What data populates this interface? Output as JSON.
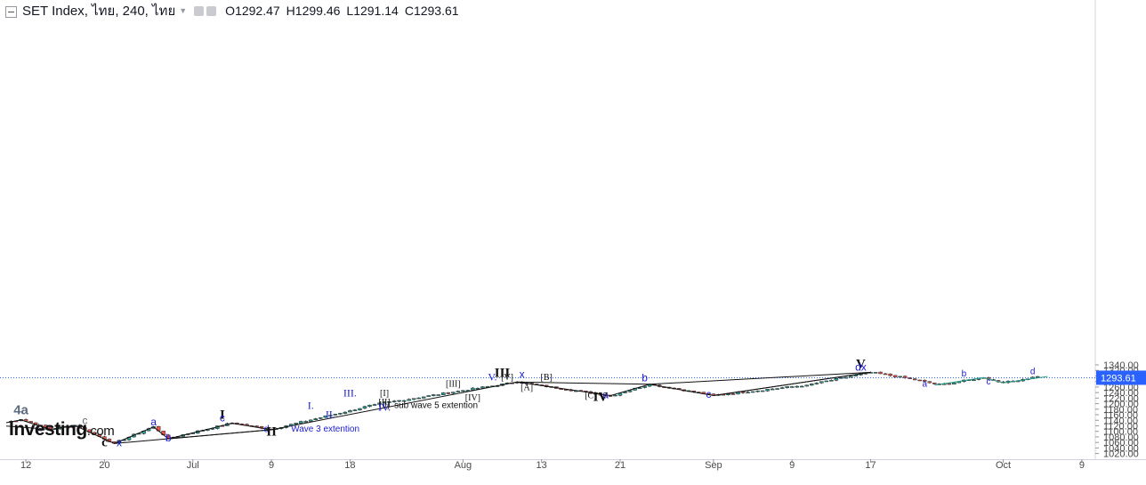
{
  "header": {
    "title": "SET Index, ไทย, 240, ไทย",
    "o_label": "O",
    "o_value": "1292.47",
    "h_label": "H",
    "h_value": "1299.46",
    "l_label": "L",
    "l_value": "1291.14",
    "c_label": "C",
    "c_value": "1293.61"
  },
  "logo": {
    "name": "Investing",
    "suffix": ".com"
  },
  "colors": {
    "up": "#26a69a",
    "down": "#ef5350",
    "wave_black": "#111111",
    "wave_blue": "#1a1ad6",
    "price_line": "#2962ff",
    "price_tag": "#2962ff",
    "green_wave": "#2e9e8a"
  },
  "chart_data": {
    "type": "candlestick",
    "y_axis": {
      "min": 1020,
      "max": 1340,
      "ticks": [
        "1020.00",
        "1040.00",
        "1060.00",
        "1080.00",
        "1100.00",
        "1120.00",
        "1140.00",
        "1160.00",
        "1180.00",
        "1200.00",
        "1220.00",
        "1240.00",
        "1260.00",
        "1280.00",
        "1300.00",
        "1320.00",
        "1340.00"
      ]
    },
    "x_axis": {
      "ticks": [
        {
          "label": "12",
          "i": 4
        },
        {
          "label": "20",
          "i": 20
        },
        {
          "label": "Jul",
          "i": 38
        },
        {
          "label": "9",
          "i": 54
        },
        {
          "label": "18",
          "i": 70
        },
        {
          "label": "Aug",
          "i": 93
        },
        {
          "label": "13",
          "i": 109
        },
        {
          "label": "21",
          "i": 125
        },
        {
          "label": "Sep",
          "i": 144
        },
        {
          "label": "9",
          "i": 160
        },
        {
          "label": "17",
          "i": 176
        },
        {
          "label": "Oct",
          "i": 203
        },
        {
          "label": "9",
          "i": 219
        }
      ]
    },
    "current_price": {
      "value": 1293.61,
      "label": "1293.61"
    },
    "pivots": [
      [
        0,
        1133
      ],
      [
        3,
        1143
      ],
      [
        9,
        1108
      ],
      [
        14,
        1122
      ],
      [
        22,
        1057
      ],
      [
        30,
        1117
      ],
      [
        33,
        1075
      ],
      [
        46,
        1130
      ],
      [
        54,
        1108
      ],
      [
        70,
        1175
      ],
      [
        75,
        1197
      ],
      [
        92,
        1245
      ],
      [
        104,
        1278
      ],
      [
        123,
        1228
      ],
      [
        131,
        1270
      ],
      [
        144,
        1230
      ],
      [
        163,
        1267
      ],
      [
        176,
        1313
      ],
      [
        184,
        1290
      ],
      [
        190,
        1268
      ],
      [
        199,
        1294
      ],
      [
        203,
        1275
      ],
      [
        210,
        1298
      ]
    ],
    "wave_lines": [
      {
        "color": "black",
        "points": [
          [
            0,
            1131
          ],
          [
            3,
            1141
          ],
          [
            9,
            1107
          ],
          [
            14,
            1121
          ],
          [
            22,
            1056
          ],
          [
            30,
            1116
          ],
          [
            33,
            1073
          ],
          [
            46,
            1129
          ],
          [
            54,
            1106
          ]
        ]
      },
      {
        "color": "black",
        "points": [
          [
            0,
            1119
          ],
          [
            9,
            1107
          ]
        ]
      },
      {
        "color": "black",
        "points": [
          [
            22,
            1056
          ],
          [
            54,
            1106
          ]
        ]
      },
      {
        "color": "black",
        "points": [
          [
            33,
            1073
          ],
          [
            54,
            1106
          ]
        ]
      },
      {
        "color": "black",
        "points": [
          [
            54,
            1106
          ],
          [
            104,
            1278
          ],
          [
            123,
            1229
          ],
          [
            131,
            1270
          ],
          [
            144,
            1229
          ],
          [
            176,
            1313
          ]
        ]
      },
      {
        "color": "black",
        "points": [
          [
            104,
            1278
          ],
          [
            131,
            1270
          ]
        ]
      },
      {
        "color": "black",
        "points": [
          [
            131,
            1270
          ],
          [
            176,
            1313
          ]
        ]
      },
      {
        "color": "black",
        "points": [
          [
            144,
            1229
          ],
          [
            176,
            1313
          ]
        ]
      },
      {
        "color": "green",
        "points": [
          [
            189,
            1267
          ],
          [
            199,
            1294
          ],
          [
            203,
            1275
          ],
          [
            212,
            1298
          ]
        ]
      }
    ],
    "labels": [
      {
        "text": "4a",
        "i": 3,
        "y": 1161,
        "color": "slate",
        "size": 15,
        "bold": true
      },
      {
        "text": "b",
        "i": 7,
        "y": 1101,
        "color": "slate",
        "size": 12
      },
      {
        "text": "c",
        "i": 16,
        "y": 1126,
        "color": "slate",
        "size": 12
      },
      {
        "text": "c",
        "i": 20,
        "y": 1046,
        "color": "black",
        "size": 15,
        "bold": true,
        "serif": true
      },
      {
        "text": "x",
        "i": 23,
        "y": 1046,
        "color": "blue",
        "size": 12
      },
      {
        "text": "a",
        "i": 30,
        "y": 1121,
        "color": "blue",
        "size": 12
      },
      {
        "text": "b",
        "i": 33,
        "y": 1063,
        "color": "blue",
        "size": 12
      },
      {
        "text": "I",
        "i": 44,
        "y": 1145,
        "color": "black",
        "size": 15,
        "bold": true,
        "serif": true
      },
      {
        "text": "c",
        "i": 44,
        "y": 1136,
        "color": "blue",
        "size": 12
      },
      {
        "text": "d",
        "i": 53,
        "y": 1098,
        "color": "blue",
        "size": 11
      },
      {
        "text": "II",
        "i": 54,
        "y": 1085,
        "color": "black",
        "size": 15,
        "bold": true,
        "serif": true
      },
      {
        "text": "Wave 3 extention",
        "i": 58,
        "y": 1099,
        "color": "blue",
        "size": 10,
        "anchor": "start"
      },
      {
        "text": "I.",
        "i": 62,
        "y": 1181,
        "color": "blue",
        "size": 12,
        "serif": true
      },
      {
        "text": "II.",
        "i": 66,
        "y": 1149,
        "color": "blue",
        "size": 12,
        "serif": true
      },
      {
        "text": "III.",
        "i": 70,
        "y": 1226,
        "color": "blue",
        "size": 12,
        "serif": true
      },
      {
        "text": "[I]",
        "i": 77,
        "y": 1227,
        "color": "black",
        "size": 10,
        "serif": true
      },
      {
        "text": "[II]",
        "i": 77,
        "y": 1196,
        "color": "black",
        "size": 10,
        "serif": true
      },
      {
        "text": "[0]",
        "i": 77,
        "y": 1186,
        "color": "black",
        "size": 10,
        "serif": true
      },
      {
        "text": "sub wave 5 extention",
        "i": 79,
        "y": 1184,
        "color": "black",
        "size": 10,
        "anchor": "start"
      },
      {
        "text": "IV.",
        "i": 77,
        "y": 1175,
        "color": "blue",
        "size": 12,
        "serif": true
      },
      {
        "text": "[III]",
        "i": 91,
        "y": 1261,
        "color": "black",
        "size": 10,
        "serif": true
      },
      {
        "text": "[IV]",
        "i": 95,
        "y": 1212,
        "color": "black",
        "size": 10,
        "serif": true
      },
      {
        "text": "V.",
        "i": 99,
        "y": 1284,
        "color": "blue",
        "size": 12,
        "serif": true
      },
      {
        "text": "[V]",
        "i": 102,
        "y": 1285,
        "color": "black",
        "size": 10,
        "serif": true
      },
      {
        "text": "III",
        "i": 101,
        "y": 1296,
        "color": "black",
        "size": 15,
        "bold": true,
        "serif": true
      },
      {
        "text": "x",
        "i": 105,
        "y": 1294,
        "color": "blue",
        "size": 12
      },
      {
        "text": "[A]",
        "i": 106,
        "y": 1249,
        "color": "black",
        "size": 10,
        "serif": true
      },
      {
        "text": "[B]",
        "i": 110,
        "y": 1286,
        "color": "black",
        "size": 10,
        "serif": true
      },
      {
        "text": "[C]",
        "i": 119,
        "y": 1220,
        "color": "black",
        "size": 10,
        "serif": true
      },
      {
        "text": "a",
        "i": 122,
        "y": 1220,
        "color": "blue",
        "size": 12
      },
      {
        "text": "IV",
        "i": 121,
        "y": 1210,
        "color": "black",
        "size": 15,
        "bold": true,
        "serif": true
      },
      {
        "text": "b",
        "i": 130,
        "y": 1281,
        "color": "blue",
        "size": 12
      },
      {
        "text": "c",
        "i": 143,
        "y": 1221,
        "color": "blue",
        "size": 12
      },
      {
        "text": "V",
        "i": 174,
        "y": 1328,
        "color": "black",
        "size": 15,
        "bold": true,
        "serif": true
      },
      {
        "text": "dx",
        "i": 174,
        "y": 1319,
        "color": "blue",
        "size": 12
      },
      {
        "text": "a",
        "i": 187,
        "y": 1261,
        "color": "blue",
        "size": 10
      },
      {
        "text": "b",
        "i": 195,
        "y": 1299,
        "color": "blue",
        "size": 10
      },
      {
        "text": "c",
        "i": 200,
        "y": 1269,
        "color": "blue",
        "size": 10
      },
      {
        "text": "d",
        "i": 209,
        "y": 1307,
        "color": "blue",
        "size": 10
      }
    ]
  }
}
